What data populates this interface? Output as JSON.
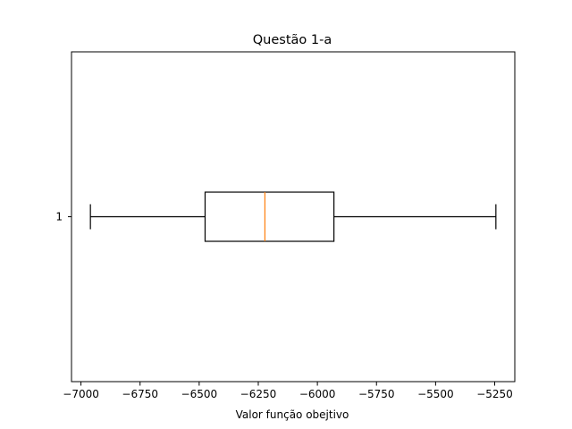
{
  "chart_data": {
    "type": "boxplot",
    "orientation": "horizontal",
    "title": "Questão 1-a",
    "xlabel": "Valor função obejtivo",
    "ylabel": "",
    "xlim": [
      -7040,
      -5165
    ],
    "x_ticks": [
      -7000,
      -6750,
      -6500,
      -6250,
      -6000,
      -5750,
      -5500,
      -5250
    ],
    "x_tick_labels": [
      "−7000",
      "−6750",
      "−6500",
      "−6250",
      "−6000",
      "−5750",
      "−5500",
      "−5250"
    ],
    "y_tick_labels": [
      "1"
    ],
    "grid": false,
    "boxes": [
      {
        "label": "1",
        "whisker_low": -6960,
        "q1": -6475,
        "median": -6222,
        "q3": -5930,
        "whisker_high": -5245
      }
    ],
    "colors": {
      "box": "#000000",
      "median": "#ff7f0e",
      "axes": "#000000"
    }
  }
}
